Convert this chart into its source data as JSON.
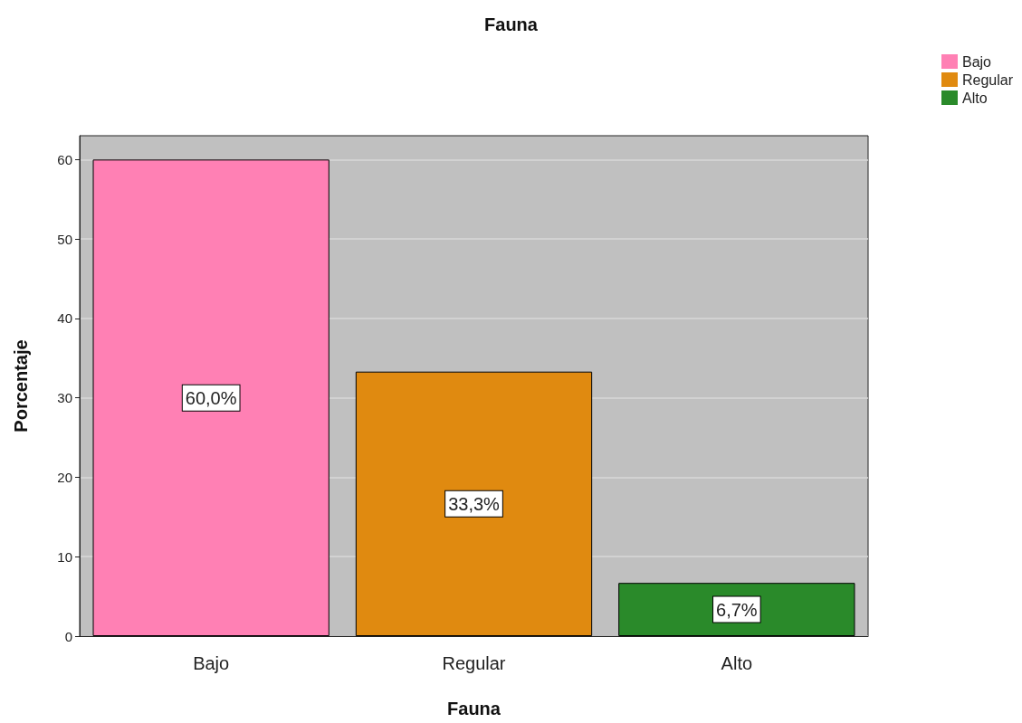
{
  "chart_data": {
    "type": "bar",
    "title": "Fauna",
    "xlabel": "Fauna",
    "ylabel": "Porcentaje",
    "categories": [
      "Bajo",
      "Regular",
      "Alto"
    ],
    "series": [
      {
        "name": "Bajo",
        "color": "#ff80b4",
        "values": [
          60.0,
          null,
          null
        ],
        "value_labels": [
          "60,0%",
          null,
          null
        ]
      },
      {
        "name": "Regular",
        "color": "#e08a10",
        "values": [
          null,
          33.3,
          null
        ],
        "value_labels": [
          null,
          "33,3%",
          null
        ]
      },
      {
        "name": "Alto",
        "color": "#2a8a2a",
        "values": [
          null,
          null,
          6.7
        ],
        "value_labels": [
          null,
          null,
          "6,7%"
        ]
      }
    ],
    "ylim": [
      0,
      63
    ],
    "yticks": [
      0,
      10,
      20,
      30,
      40,
      50,
      60
    ],
    "grid": "y",
    "legend": "top right"
  }
}
